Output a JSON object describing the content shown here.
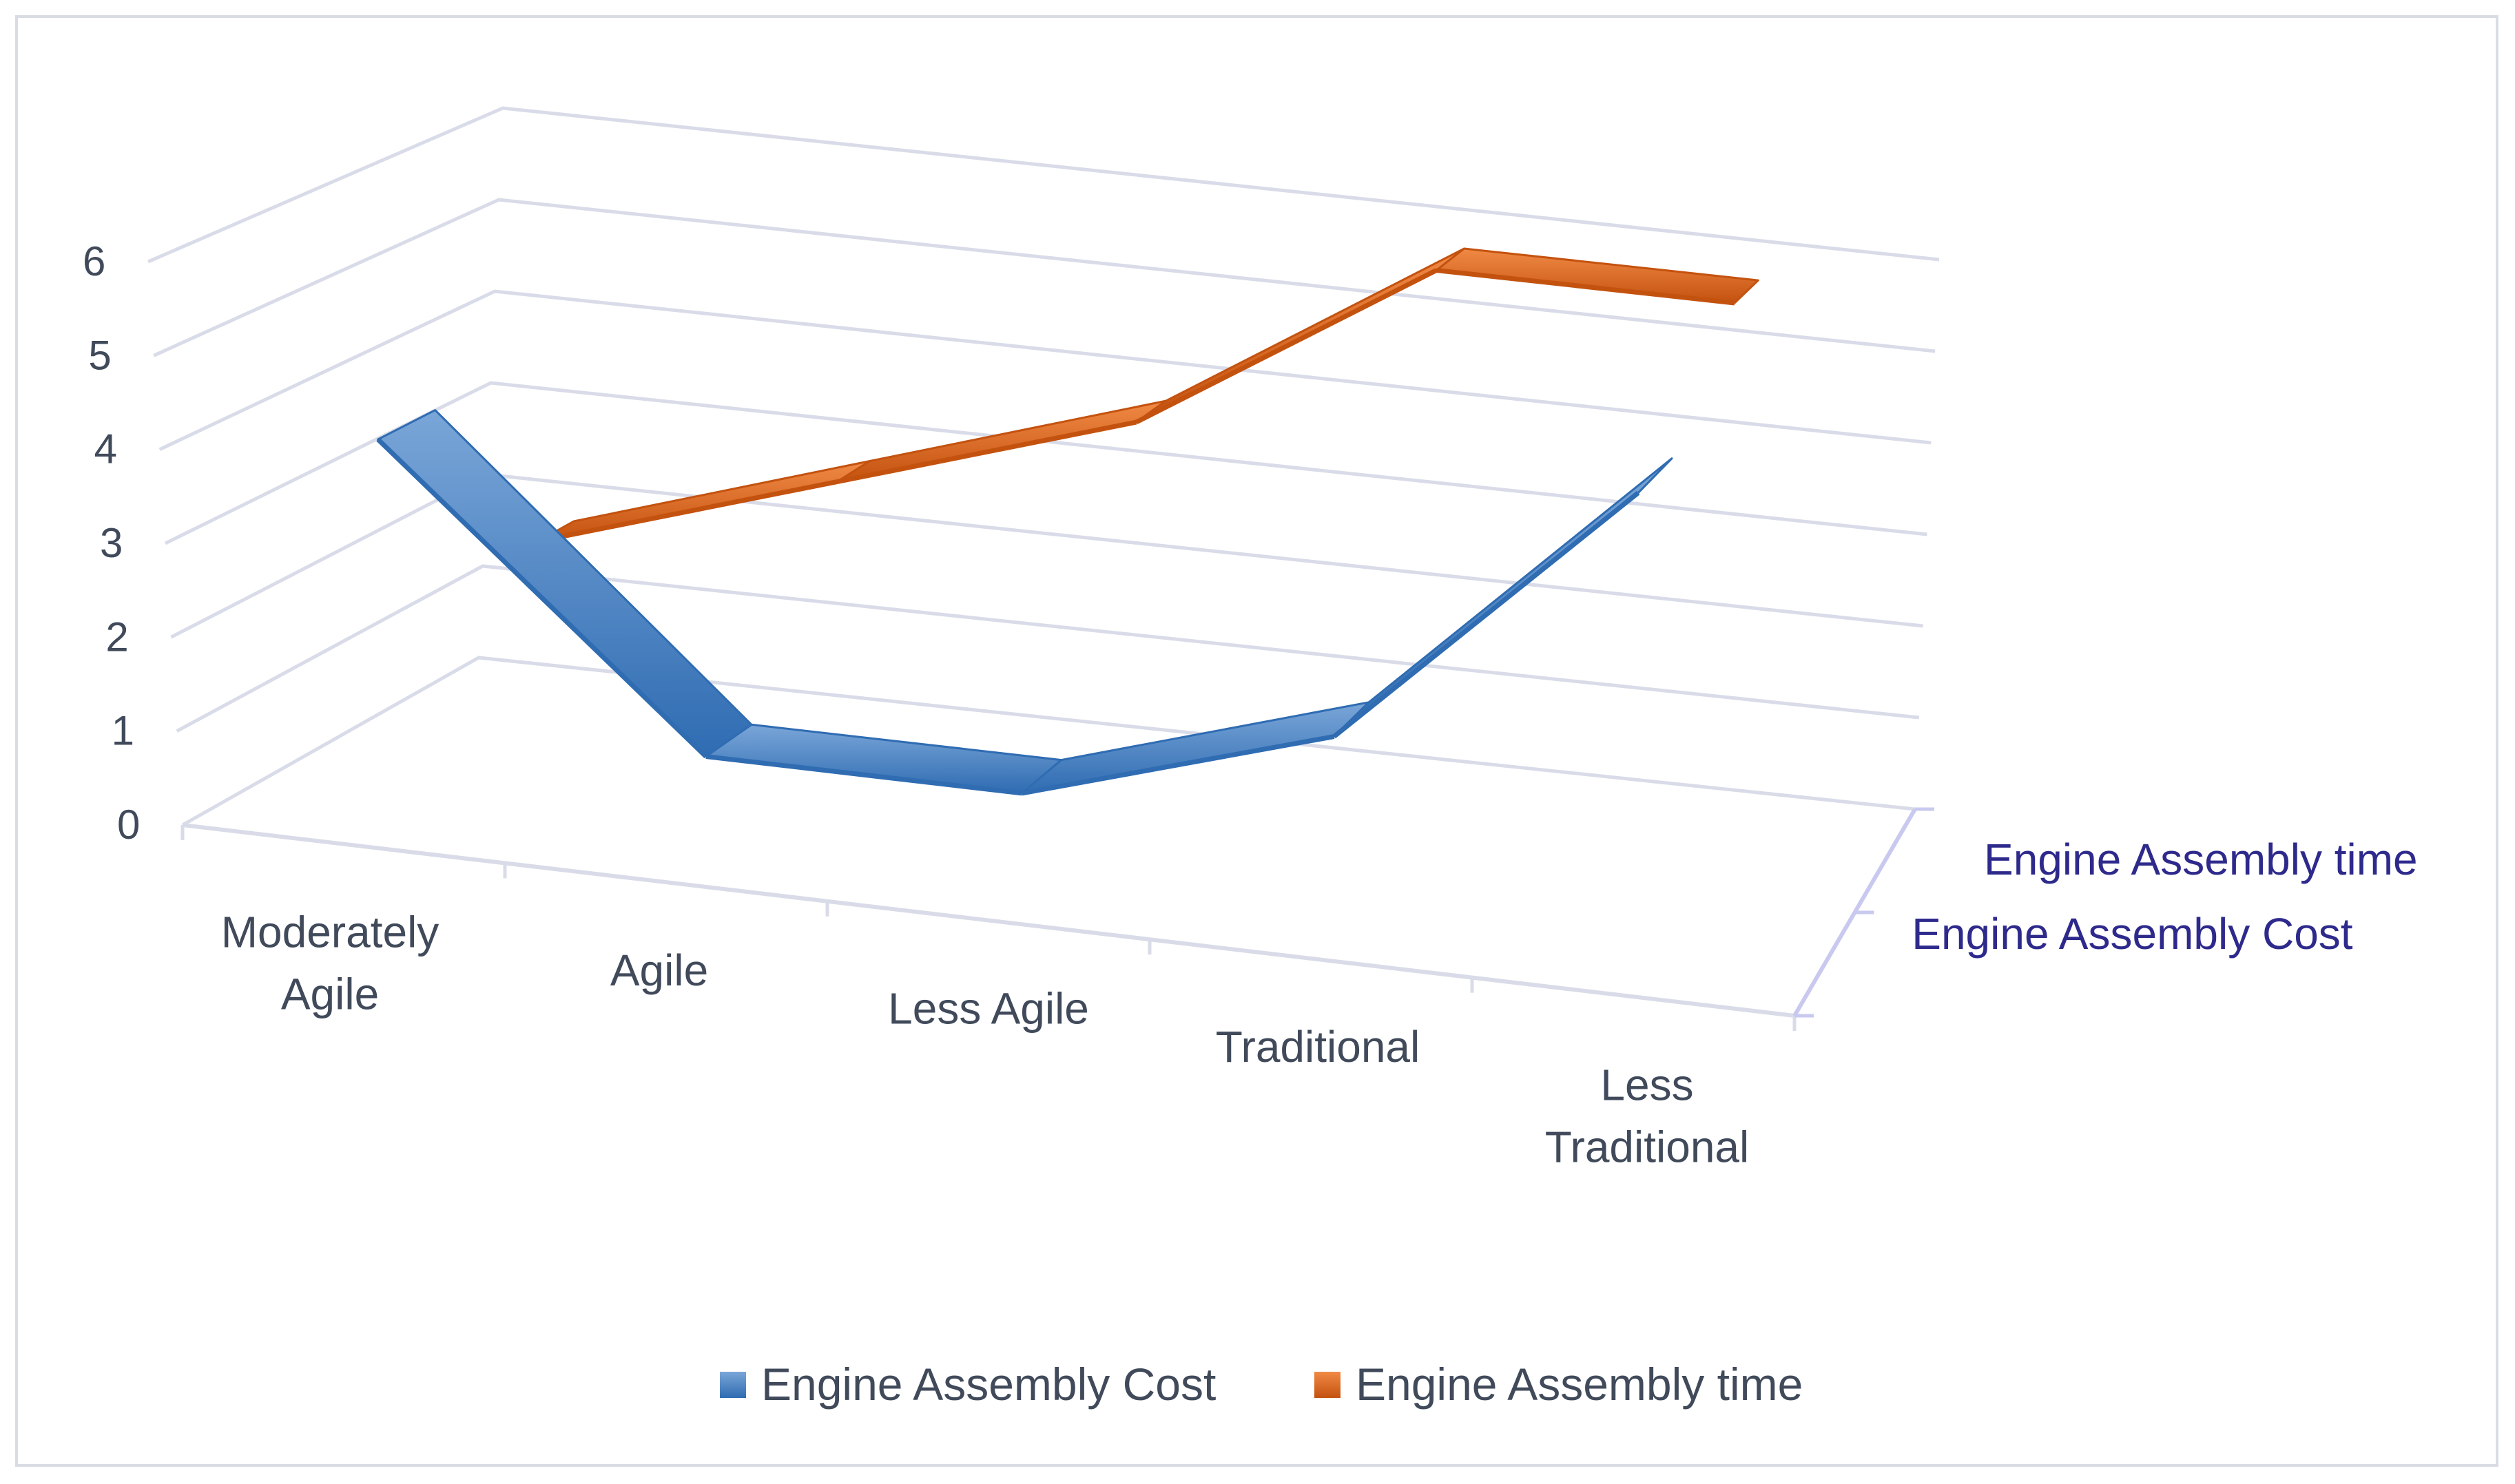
{
  "chart_data": {
    "type": "line",
    "subtype": "3d-line",
    "title": "",
    "xlabel": "",
    "ylabel": "",
    "categories": [
      "Moderately Agile",
      "Agile",
      "Less Agile",
      "Traditional",
      "Less Traditional"
    ],
    "category_lines": [
      [
        "Moderately",
        "Agile"
      ],
      [
        "Agile"
      ],
      [
        "Less Agile"
      ],
      [
        "Traditional"
      ],
      [
        "Less",
        "Traditional"
      ]
    ],
    "ylim": [
      0,
      6
    ],
    "yticks": [
      "0",
      "1",
      "2",
      "3",
      "4",
      "5",
      "6"
    ],
    "depth_axis": [
      "Engine Assembly Cost",
      "Engine Assembly time"
    ],
    "grid": true,
    "legend_position": "bottom",
    "series": [
      {
        "name": "Engine Assembly Cost",
        "values": [
          4,
          1,
          1,
          2,
          5
        ],
        "color": "#3b79bd"
      },
      {
        "name": "Engine Assembly time",
        "values": [
          2,
          3,
          4,
          6,
          6
        ],
        "color": "#e46c1e"
      }
    ]
  }
}
